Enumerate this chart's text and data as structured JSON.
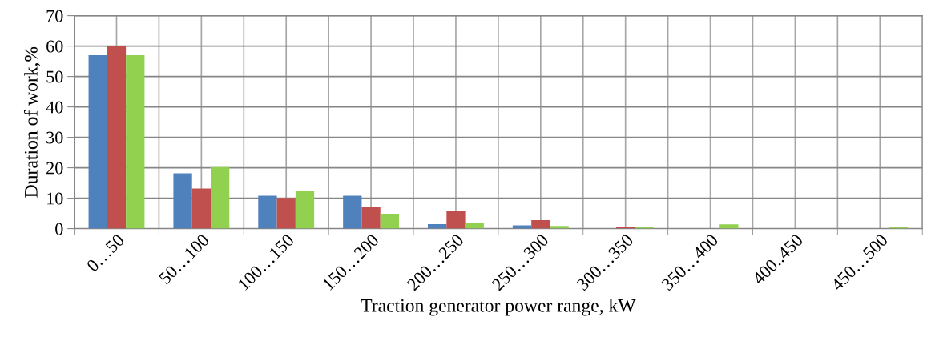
{
  "chart_data": {
    "type": "bar",
    "xlabel": "Traction generator power range, kW",
    "ylabel": "Duration of work,%",
    "categories": [
      "0…50",
      "50…100",
      "100…150",
      "150…200",
      "200…250",
      "250…300",
      "300…350",
      "350…400",
      "400..450",
      "450…500"
    ],
    "series": [
      {
        "color": "#4f81bd",
        "values": [
          57,
          18.2,
          10.8,
          10.8,
          1.5,
          1.1,
          0,
          null,
          null,
          0
        ]
      },
      {
        "color": "#c0504d",
        "values": [
          60,
          13.2,
          10.1,
          7.1,
          5.7,
          2.8,
          0.7,
          null,
          0,
          0
        ]
      },
      {
        "color": "#92d050",
        "values": [
          57,
          20.2,
          12.3,
          4.9,
          1.8,
          0.9,
          0.4,
          1.4,
          0,
          0.4
        ]
      }
    ],
    "ylim": [
      0,
      70
    ],
    "yticks": [
      0,
      10,
      20,
      30,
      40,
      50,
      60,
      70
    ],
    "grid": true,
    "legend": false
  }
}
